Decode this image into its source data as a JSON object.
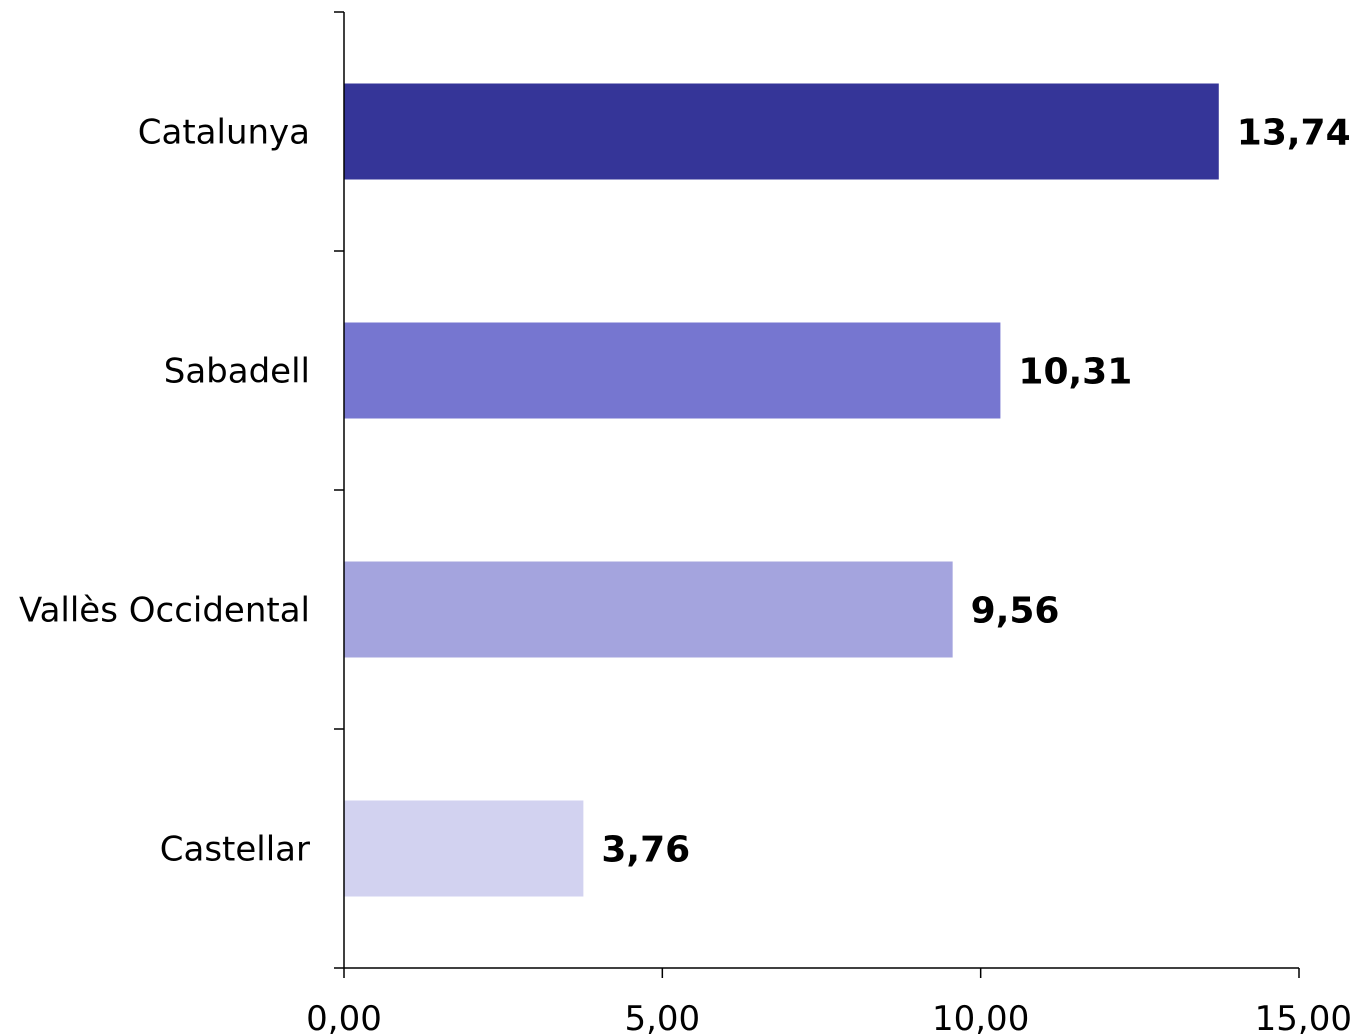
{
  "chart_data": {
    "type": "bar",
    "orientation": "horizontal",
    "title": "",
    "xlabel": "",
    "ylabel": "",
    "categories": [
      "Catalunya",
      "Sabadell",
      "Vallès Occidental",
      "Castellar"
    ],
    "values": [
      13.74,
      10.31,
      9.56,
      3.76
    ],
    "value_labels": [
      "13,74",
      "10,31",
      "9,56",
      "3,76"
    ],
    "colors": [
      "#353598",
      "#7676d0",
      "#a4a4de",
      "#d2d2f0"
    ],
    "xlim": [
      0,
      15
    ],
    "x_ticks": [
      0,
      5,
      10,
      15
    ],
    "x_tick_labels": [
      "0,00",
      "5,00",
      "10,00",
      "15,00"
    ],
    "grid": false,
    "legend": "none"
  }
}
